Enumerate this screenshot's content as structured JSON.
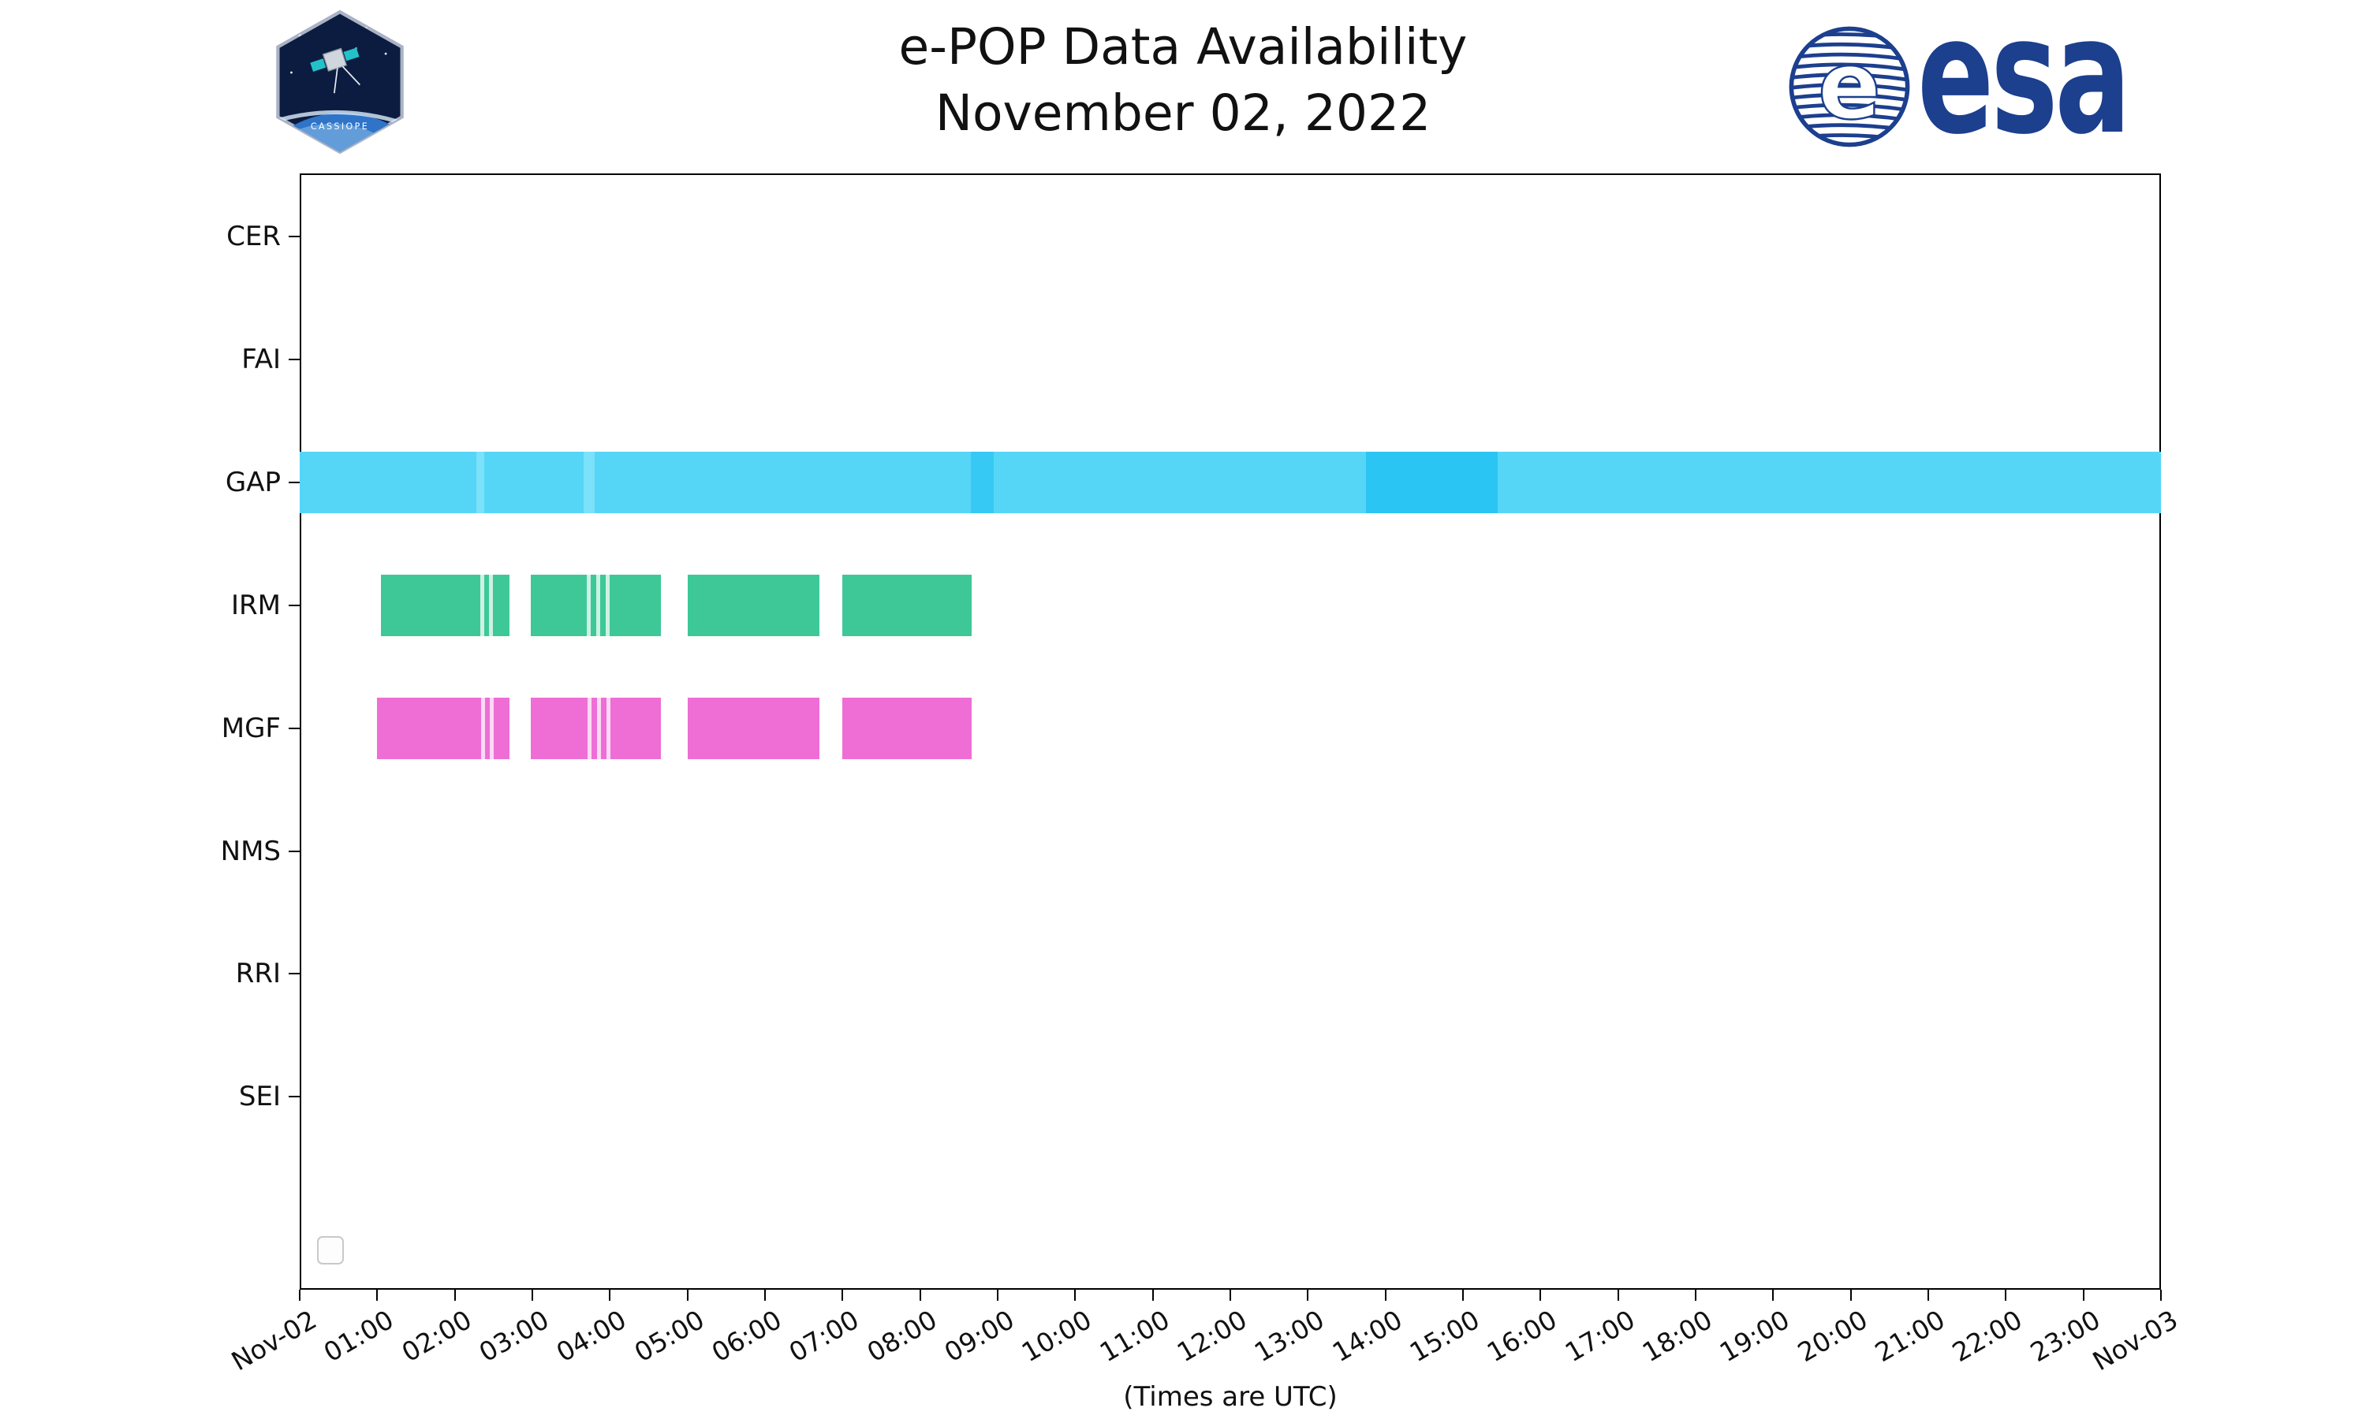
{
  "header": {
    "esa_logo_text": "esa",
    "patch_label": "CASSIOPE"
  },
  "chart_data": {
    "type": "timeline",
    "title": "e-POP Data Availability",
    "subtitle": "November 02, 2022",
    "caption": "(Times are UTC)",
    "categories": [
      "CER",
      "FAI",
      "GAP",
      "IRM",
      "MGF",
      "NMS",
      "RRI",
      "SEI"
    ],
    "x_axis": {
      "start_hour": 0,
      "end_hour": 24,
      "tick_labels": [
        "Nov-02",
        "01:00",
        "02:00",
        "03:00",
        "04:00",
        "05:00",
        "06:00",
        "07:00",
        "08:00",
        "09:00",
        "10:00",
        "11:00",
        "12:00",
        "13:00",
        "14:00",
        "15:00",
        "16:00",
        "17:00",
        "18:00",
        "19:00",
        "20:00",
        "21:00",
        "22:00",
        "23:00",
        "Nov-03"
      ]
    },
    "series": [
      {
        "category": "GAP",
        "color": "#55d6f7",
        "segments": [
          {
            "start": 0.0,
            "end": 24.0
          }
        ],
        "overlays": [
          {
            "start": 2.28,
            "end": 2.38,
            "color": "#7ce1fa"
          },
          {
            "start": 3.66,
            "end": 3.8,
            "color": "#7ce1fa"
          },
          {
            "start": 8.65,
            "end": 8.95,
            "color": "#36c9f4"
          },
          {
            "start": 13.75,
            "end": 15.45,
            "color": "#2bc5f3"
          }
        ],
        "gaps": []
      },
      {
        "category": "IRM",
        "color": "#3ec898",
        "segments": [
          {
            "start": 1.05,
            "end": 2.71
          },
          {
            "start": 2.98,
            "end": 4.66
          },
          {
            "start": 5.0,
            "end": 6.7
          },
          {
            "start": 7.0,
            "end": 8.67
          }
        ],
        "overlays": [],
        "gaps": [
          2.33,
          2.44,
          3.7,
          3.82,
          3.95
        ]
      },
      {
        "category": "MGF",
        "color": "#ee6ed6",
        "segments": [
          {
            "start": 1.0,
            "end": 2.71
          },
          {
            "start": 2.98,
            "end": 4.66
          },
          {
            "start": 5.0,
            "end": 6.7
          },
          {
            "start": 7.0,
            "end": 8.67
          }
        ],
        "overlays": [],
        "gaps": [
          2.34,
          2.45,
          3.71,
          3.83,
          3.96
        ]
      }
    ],
    "legend": {
      "entries": []
    }
  }
}
